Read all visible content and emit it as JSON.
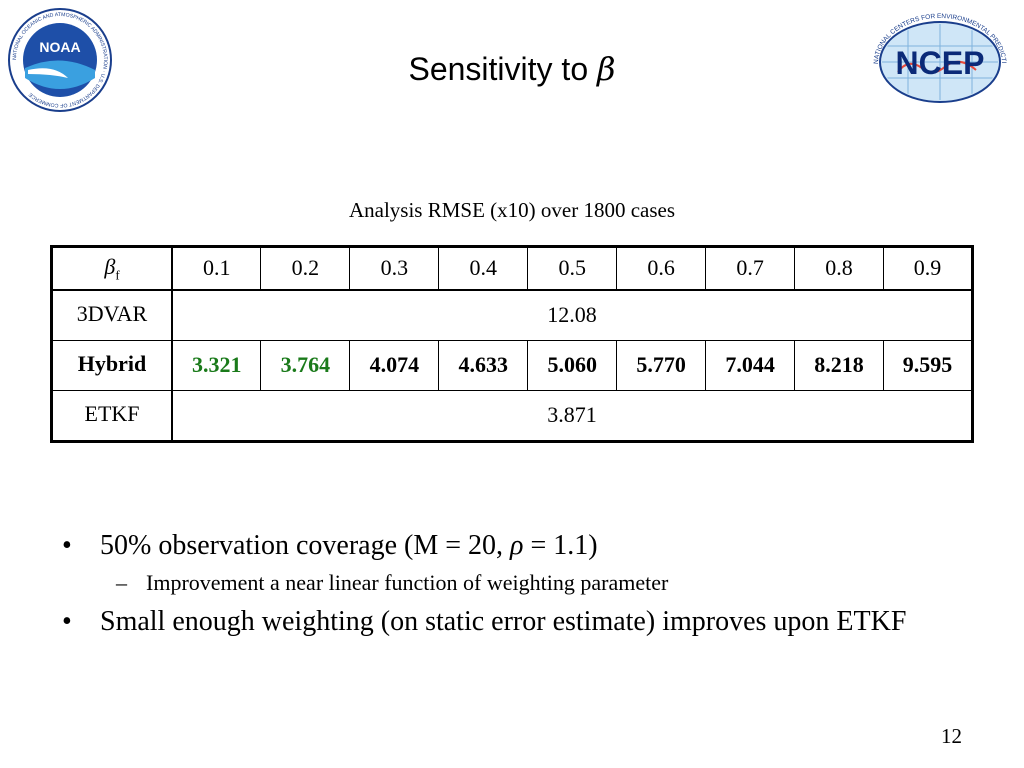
{
  "slide": {
    "title_text": "Sensitivity to ",
    "title_symbol": "β",
    "caption": "Analysis RMSE (x10) over 1800 cases",
    "page_number": "12"
  },
  "logos": {
    "noaa": {
      "label": "NOAA",
      "ring_text": "NATIONAL OCEANIC AND ATMOSPHERIC ADMINISTRATION · U.S. DEPARTMENT OF COMMERCE"
    },
    "ncep": {
      "label": "NCEP",
      "ring_text": "NATIONAL CENTERS FOR ENVIRONMENTAL PREDICTION"
    }
  },
  "table": {
    "header_symbol": "β",
    "header_subscript": "f",
    "beta_values": [
      "0.1",
      "0.2",
      "0.3",
      "0.4",
      "0.5",
      "0.6",
      "0.7",
      "0.8",
      "0.9"
    ],
    "rows": {
      "threedvar": {
        "label": "3DVAR",
        "value": "12.08"
      },
      "hybrid": {
        "label": "Hybrid",
        "values": [
          "3.321",
          "3.764",
          "4.074",
          "4.633",
          "5.060",
          "5.770",
          "7.044",
          "8.218",
          "9.595"
        ]
      },
      "etkf": {
        "label": "ETKF",
        "value": "3.871"
      }
    },
    "colors": {
      "highlight": "#1a7a1a"
    }
  },
  "bullets": {
    "b1_prefix": "50% observation coverage (M = 20, ",
    "b1_symbol": "ρ",
    "b1_suffix": " = 1.1)",
    "b1_sub": "Improvement a near linear function of weighting parameter",
    "b2": "Small enough weighting (on static error estimate) improves upon ETKF",
    "bullet_glyph": "•",
    "dash_glyph": "–"
  }
}
